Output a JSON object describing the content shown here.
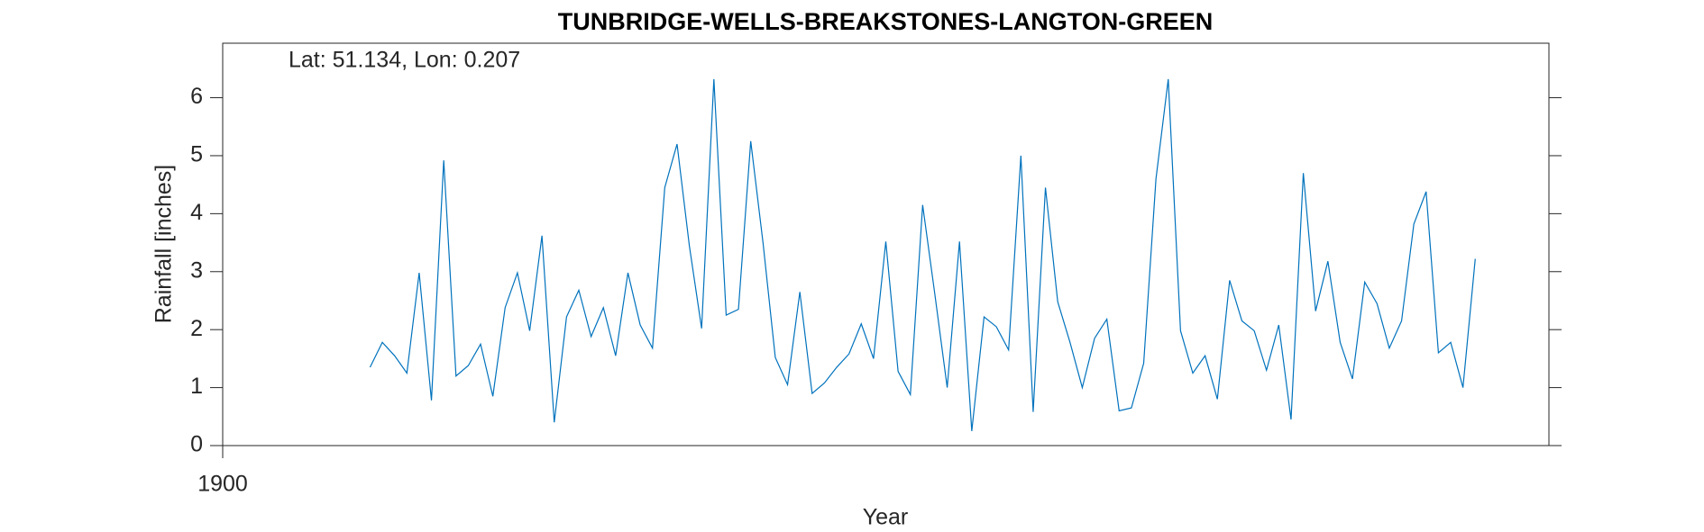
{
  "chart_data": {
    "type": "line",
    "title": "TUNBRIDGE-WELLS-BREAKSTONES-LANGTON-GREEN",
    "annotation": "Lat: 51.134, Lon: 0.207",
    "xlabel": "Year",
    "ylabel": "Rainfall [inches]",
    "x": [
      1912,
      1913,
      1914,
      1915,
      1916,
      1917,
      1918,
      1919,
      1920,
      1921,
      1922,
      1923,
      1924,
      1925,
      1926,
      1927,
      1928,
      1929,
      1930,
      1931,
      1932,
      1933,
      1934,
      1935,
      1936,
      1937,
      1938,
      1939,
      1940,
      1941,
      1942,
      1943,
      1944,
      1945,
      1946,
      1947,
      1948,
      1949,
      1950,
      1951,
      1952,
      1953,
      1954,
      1955,
      1956,
      1957,
      1958,
      1959,
      1960,
      1961,
      1962,
      1963,
      1964,
      1965,
      1966,
      1967,
      1968,
      1969,
      1970,
      1971,
      1972,
      1973,
      1974,
      1975,
      1976,
      1977,
      1978,
      1979,
      1980,
      1981,
      1982,
      1983,
      1984,
      1985,
      1986,
      1987,
      1988,
      1989,
      1990,
      1991,
      1992,
      1993,
      1994,
      1995,
      1996,
      1997,
      1998,
      1999,
      2000,
      2001,
      2002
    ],
    "series": [
      {
        "color": "#0072bd",
        "values": [
          1.35,
          1.78,
          1.55,
          1.25,
          2.98,
          0.78,
          4.92,
          1.2,
          1.38,
          1.75,
          0.85,
          2.38,
          2.98,
          1.98,
          3.62,
          0.4,
          2.22,
          2.68,
          1.88,
          2.38,
          1.55,
          2.98,
          2.08,
          1.68,
          4.45,
          5.2,
          3.45,
          2.02,
          6.32,
          2.25,
          2.35,
          5.25,
          3.5,
          1.52,
          1.05,
          2.65,
          0.9,
          1.08,
          1.35,
          1.58,
          2.1,
          1.5,
          3.52,
          1.28,
          0.88,
          4.15,
          2.6,
          1.0,
          3.52,
          0.25,
          2.22,
          2.05,
          1.65,
          5.0,
          0.58,
          4.45,
          2.48,
          1.78,
          1.0,
          1.85,
          2.18,
          0.6,
          0.65,
          1.42,
          4.6,
          6.32,
          1.98,
          1.25,
          1.55,
          0.8,
          2.85,
          2.15,
          1.98,
          1.3,
          2.08,
          0.45,
          4.7,
          2.32,
          3.18,
          1.78,
          1.15,
          2.82,
          2.45,
          1.68,
          2.15,
          3.82,
          4.38,
          1.6,
          1.78,
          1.0,
          3.22
        ]
      }
    ],
    "xlim": [
      1900,
      2008
    ],
    "xticks": [
      1900
    ],
    "ylim": [
      0,
      6.94
    ],
    "yticks": [
      0,
      1,
      2,
      3,
      4,
      5,
      6
    ]
  }
}
